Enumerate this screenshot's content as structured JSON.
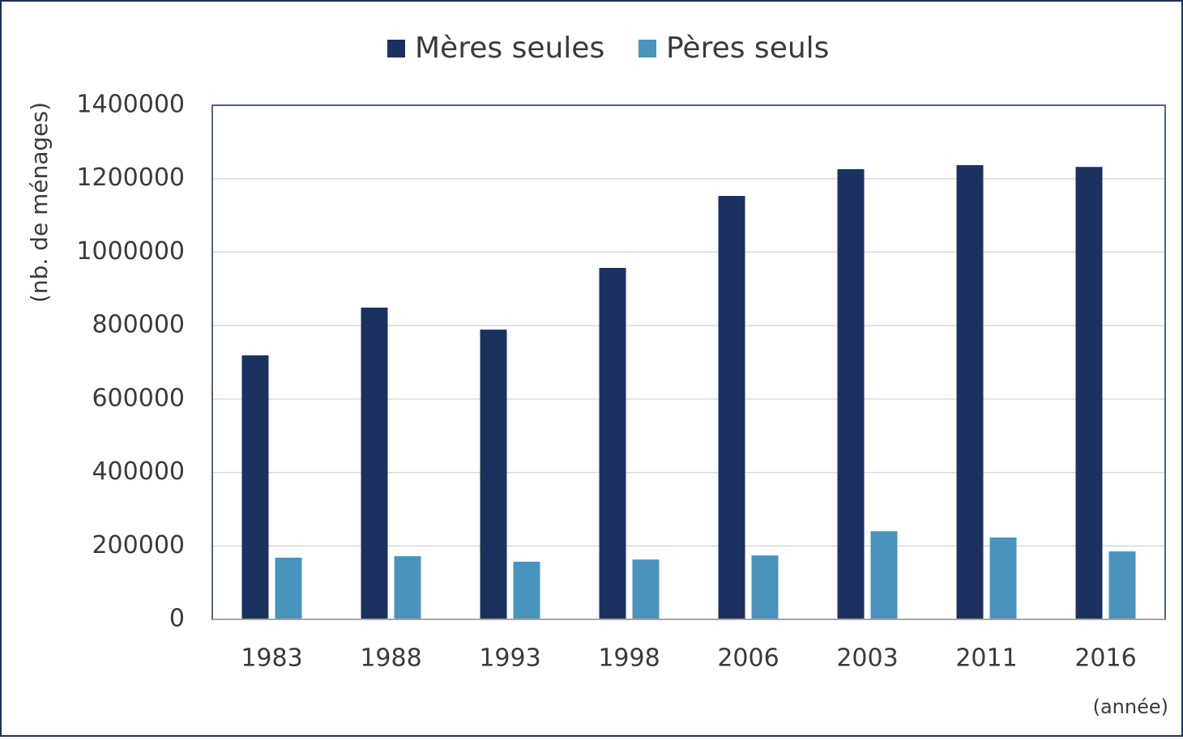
{
  "chart_data": {
    "type": "bar",
    "categories": [
      "1983",
      "1988",
      "1993",
      "1998",
      "2006",
      "2003",
      "2011",
      "2016"
    ],
    "series": [
      {
        "name": "Mères seules",
        "color": "#1b3160",
        "values": [
          719000,
          849000,
          789000,
          957000,
          1153000,
          1226000,
          1237000,
          1232000
        ]
      },
      {
        "name": "Pères seuls",
        "color": "#4a93bd",
        "values": [
          168000,
          172000,
          157000,
          163000,
          174000,
          240000,
          223000,
          185000
        ]
      }
    ],
    "y_label": "(nb. de ménages)",
    "x_label": "(année)",
    "ylim": [
      0,
      1400000
    ],
    "yticks": [
      0,
      200000,
      400000,
      600000,
      800000,
      1000000,
      1200000,
      1400000
    ],
    "grid": true,
    "legend": "top"
  }
}
